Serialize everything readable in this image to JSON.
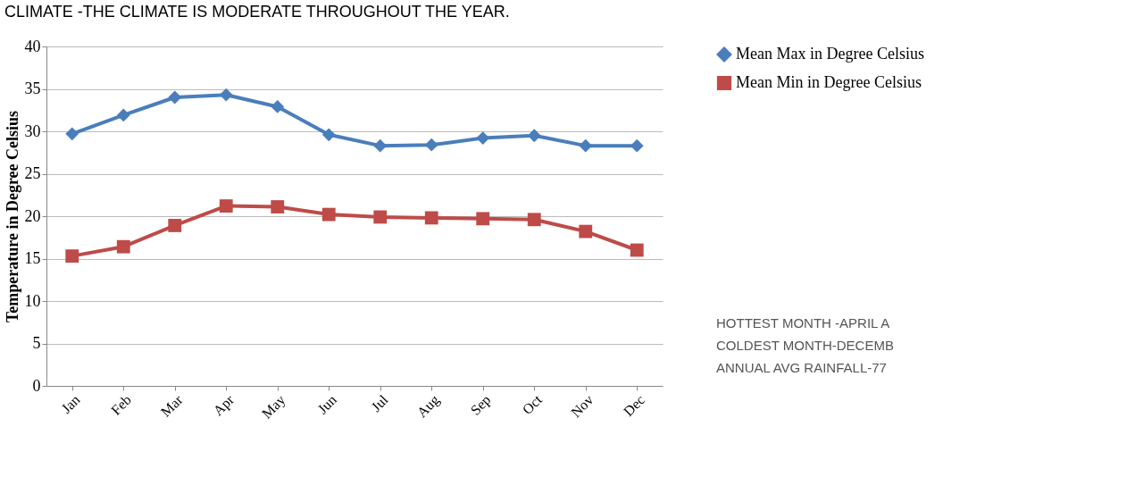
{
  "chart_data": {
    "type": "line",
    "title": "CLIMATE -THE CLIMATE IS MODERATE THROUGHOUT THE YEAR.",
    "ylabel": "Temperature in Degree Celsius",
    "categories": [
      "Jan",
      "Feb",
      "Mar",
      "Apr",
      "May",
      "Jun",
      "Jul",
      "Aug",
      "Sep",
      "Oct",
      "Nov",
      "Dec"
    ],
    "series": [
      {
        "name": "Mean Max in Degree Celsius",
        "color": "#4a7ebb",
        "marker": "diamond",
        "values": [
          29.7,
          31.9,
          34.0,
          34.3,
          32.9,
          29.6,
          28.3,
          28.4,
          29.2,
          29.5,
          28.3,
          28.3
        ]
      },
      {
        "name": "Mean Min in Degree Celsius",
        "color": "#be4b48",
        "marker": "square",
        "values": [
          15.3,
          16.4,
          18.9,
          21.2,
          21.1,
          20.2,
          19.9,
          19.8,
          19.7,
          19.6,
          18.2,
          16.0
        ]
      }
    ],
    "ylim": [
      0,
      40
    ],
    "yticks": [
      0,
      5,
      10,
      15,
      20,
      25,
      30,
      35,
      40
    ],
    "grid": "y",
    "legend": "right",
    "annotations": [
      "HOTTEST MONTH -APRIL   A",
      "COLDEST MONTH-DECEMB",
      "ANNUAL AVG RAINFALL-77"
    ]
  }
}
